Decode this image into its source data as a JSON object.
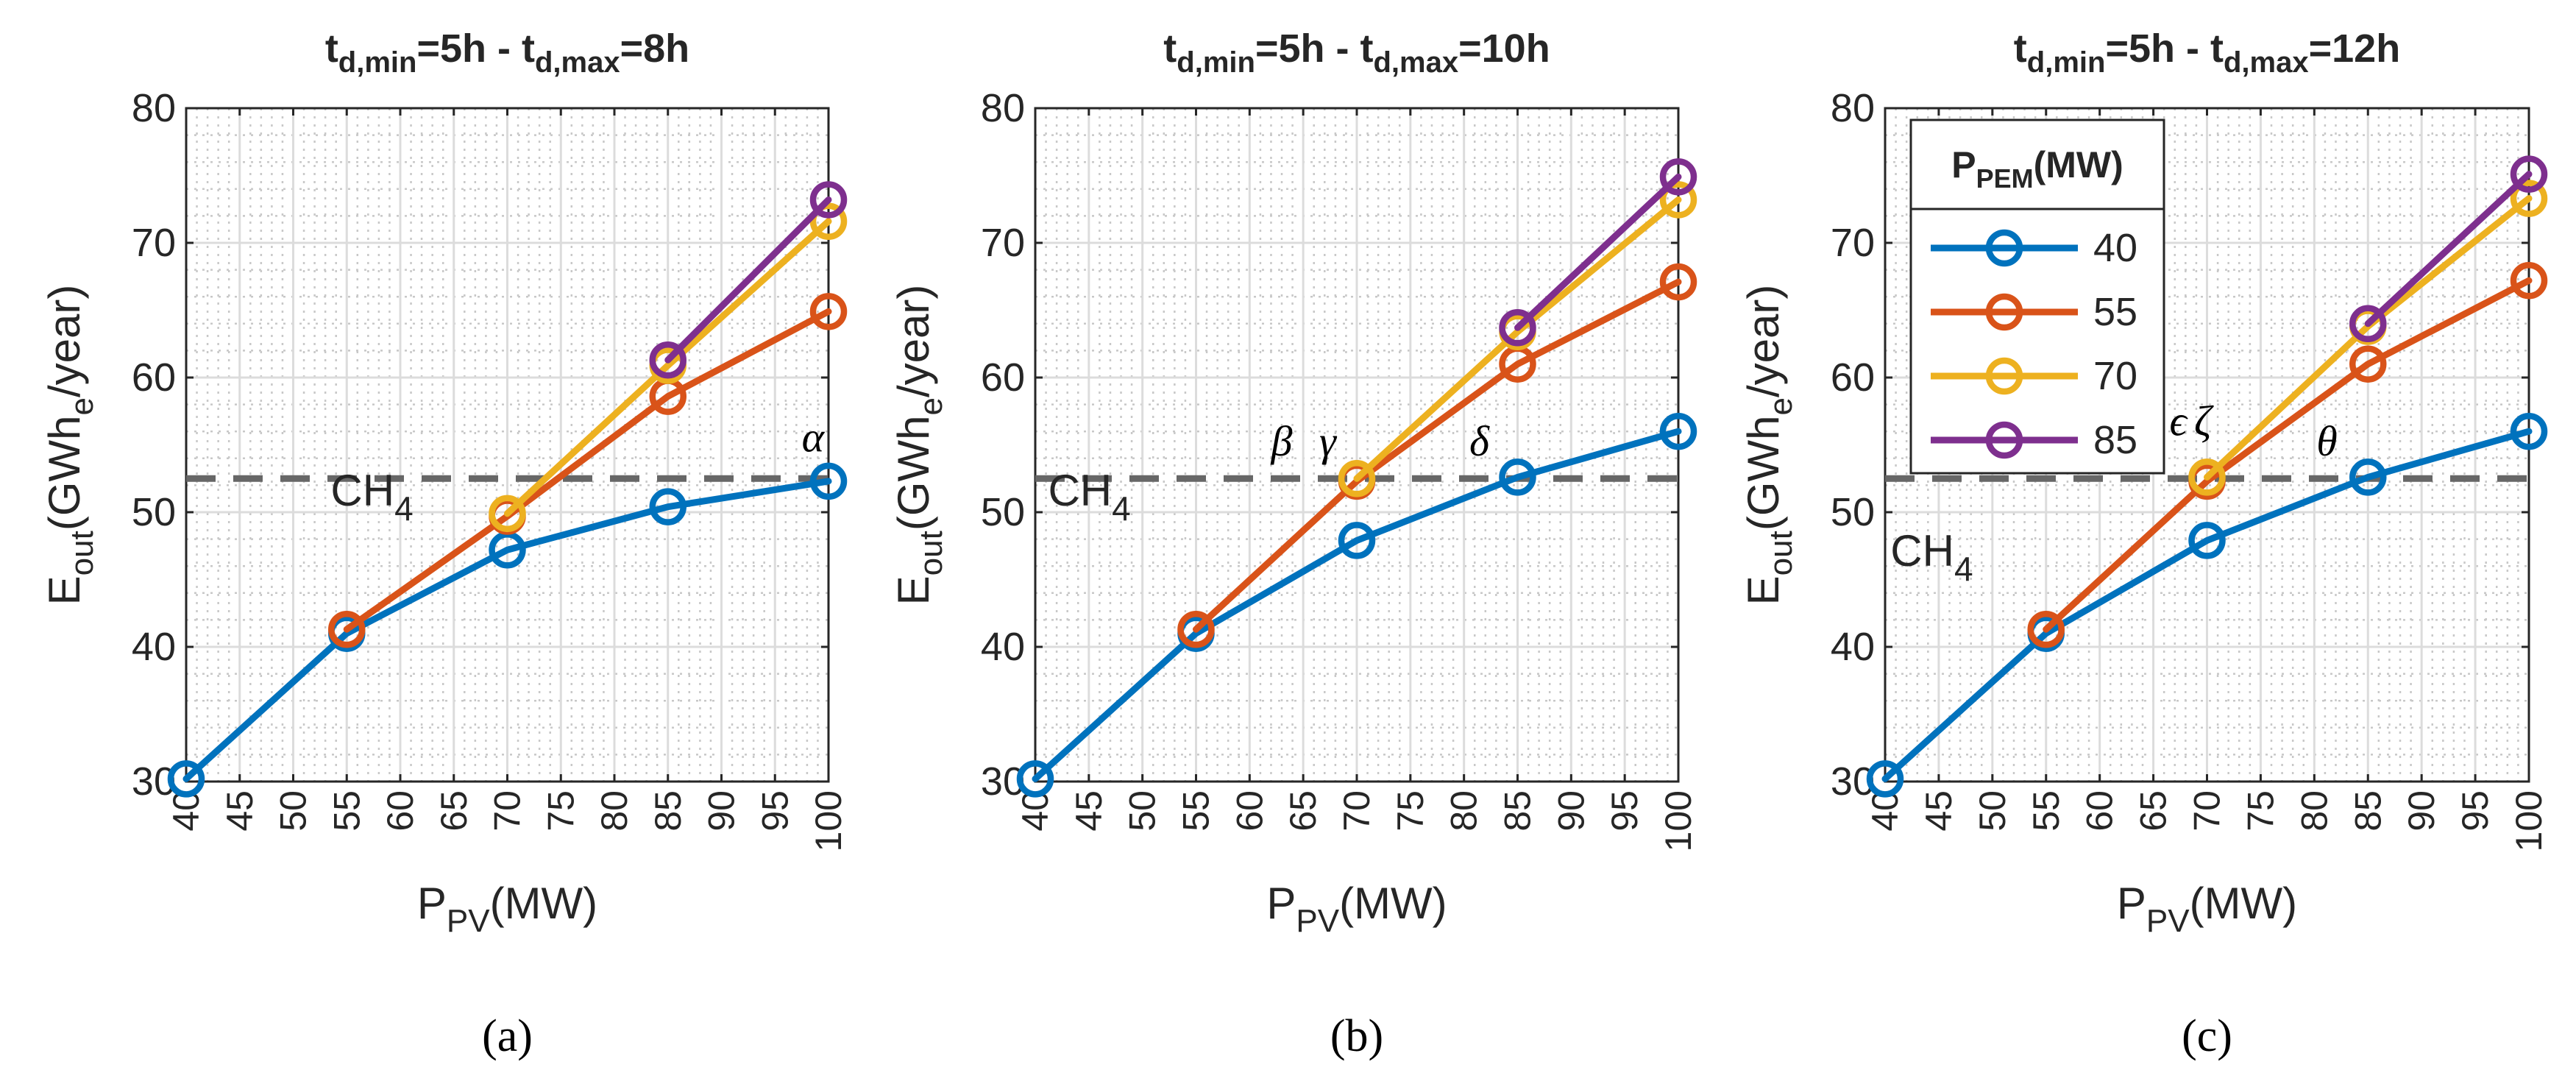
{
  "chart_data": [
    {
      "type": "line",
      "panel_label": "(a)",
      "title": {
        "base": "t",
        "sub1": "d,min",
        "mid": "=5h - t",
        "sub2": "d,max",
        "end": "=8h"
      },
      "xlabel": {
        "base": "P",
        "sub": "PV",
        "rest": "(MW)"
      },
      "ylabel": {
        "base": "E",
        "sub": "out",
        "mid": "(GWh",
        "sub2": "e",
        "end": "/year)"
      },
      "xlim": [
        40,
        100
      ],
      "ylim": [
        30,
        80
      ],
      "xticks": [
        40,
        45,
        50,
        55,
        60,
        65,
        70,
        75,
        80,
        85,
        90,
        95,
        100
      ],
      "yticks": [
        30,
        40,
        50,
        60,
        70,
        80
      ],
      "grid": true,
      "reference": {
        "value": 52.5,
        "label": "CH",
        "label_sub": "4",
        "label_x": 53.5,
        "label_y": 50.5
      },
      "annotations": [
        {
          "text": "α",
          "x": 97.5,
          "y": 54.5
        }
      ],
      "series": [
        {
          "name": "40",
          "color": "#0072BD",
          "x": [
            40,
            55,
            70,
            85,
            100
          ],
          "values": [
            30.2,
            41.0,
            47.2,
            50.4,
            52.3
          ]
        },
        {
          "name": "55",
          "color": "#D95319",
          "x": [
            55,
            70,
            85,
            100
          ],
          "values": [
            41.3,
            49.7,
            58.6,
            64.9
          ]
        },
        {
          "name": "70",
          "color": "#EDB120",
          "x": [
            70,
            85,
            100
          ],
          "values": [
            49.9,
            60.9,
            71.6
          ]
        },
        {
          "name": "85",
          "color": "#7E2F8E",
          "x": [
            85,
            100
          ],
          "values": [
            61.3,
            73.2
          ]
        }
      ]
    },
    {
      "type": "line",
      "panel_label": "(b)",
      "title": {
        "base": "t",
        "sub1": "d,min",
        "mid": "=5h - t",
        "sub2": "d,max",
        "end": "=10h"
      },
      "xlabel": {
        "base": "P",
        "sub": "PV",
        "rest": "(MW)"
      },
      "ylabel": {
        "base": "E",
        "sub": "out",
        "mid": "(GWh",
        "sub2": "e",
        "end": "/year)"
      },
      "xlim": [
        40,
        100
      ],
      "ylim": [
        30,
        80
      ],
      "xticks": [
        40,
        45,
        50,
        55,
        60,
        65,
        70,
        75,
        80,
        85,
        90,
        95,
        100
      ],
      "yticks": [
        30,
        40,
        50,
        60,
        70,
        80
      ],
      "grid": true,
      "reference": {
        "value": 52.5,
        "label": "CH",
        "label_sub": "4",
        "label_x": 41.2,
        "label_y": 50.5
      },
      "annotations": [
        {
          "text": "β",
          "x": 62.0,
          "y": 54.2
        },
        {
          "text": "γ",
          "x": 66.5,
          "y": 54.2
        },
        {
          "text": "δ",
          "x": 80.5,
          "y": 54.2
        }
      ],
      "series": [
        {
          "name": "40",
          "color": "#0072BD",
          "x": [
            40,
            55,
            70,
            85,
            100
          ],
          "values": [
            30.2,
            41.0,
            47.9,
            52.6,
            56.0
          ]
        },
        {
          "name": "55",
          "color": "#D95319",
          "x": [
            55,
            70,
            85,
            100
          ],
          "values": [
            41.3,
            52.3,
            61.0,
            67.1
          ]
        },
        {
          "name": "70",
          "color": "#EDB120",
          "x": [
            70,
            85,
            100
          ],
          "values": [
            52.5,
            63.4,
            73.2
          ]
        },
        {
          "name": "85",
          "color": "#7E2F8E",
          "x": [
            85,
            100
          ],
          "values": [
            63.7,
            74.9
          ]
        }
      ]
    },
    {
      "type": "line",
      "panel_label": "(c)",
      "title": {
        "base": "t",
        "sub1": "d,min",
        "mid": "=5h - t",
        "sub2": "d,max",
        "end": "=12h"
      },
      "xlabel": {
        "base": "P",
        "sub": "PV",
        "rest": "(MW)"
      },
      "ylabel": {
        "base": "E",
        "sub": "out",
        "mid": "(GWh",
        "sub2": "e",
        "end": "/year)"
      },
      "xlim": [
        40,
        100
      ],
      "ylim": [
        30,
        80
      ],
      "xticks": [
        40,
        45,
        50,
        55,
        60,
        65,
        70,
        75,
        80,
        85,
        90,
        95,
        100
      ],
      "yticks": [
        30,
        40,
        50,
        60,
        70,
        80
      ],
      "grid": true,
      "reference": {
        "value": 52.5,
        "label": "CH",
        "label_sub": "4",
        "label_x": 40.5,
        "label_y": 46.0
      },
      "annotations": [
        {
          "text": "ϵ",
          "x": 66.5,
          "y": 55.7
        },
        {
          "text": "ζ",
          "x": 68.8,
          "y": 55.7
        },
        {
          "text": "θ",
          "x": 80.2,
          "y": 54.2
        }
      ],
      "legend": {
        "position": "top-left",
        "title": {
          "base": "P",
          "sub": "PEM",
          "rest": "(MW)"
        }
      },
      "series": [
        {
          "name": "40",
          "color": "#0072BD",
          "x": [
            40,
            55,
            70,
            85,
            100
          ],
          "values": [
            30.2,
            41.0,
            47.9,
            52.6,
            56.0
          ]
        },
        {
          "name": "55",
          "color": "#D95319",
          "x": [
            55,
            70,
            85,
            100
          ],
          "values": [
            41.3,
            52.3,
            61.0,
            67.2
          ]
        },
        {
          "name": "70",
          "color": "#EDB120",
          "x": [
            70,
            85,
            100
          ],
          "values": [
            52.6,
            63.8,
            73.3
          ]
        },
        {
          "name": "85",
          "color": "#7E2F8E",
          "x": [
            85,
            100
          ],
          "values": [
            64.0,
            75.1
          ]
        }
      ]
    }
  ]
}
